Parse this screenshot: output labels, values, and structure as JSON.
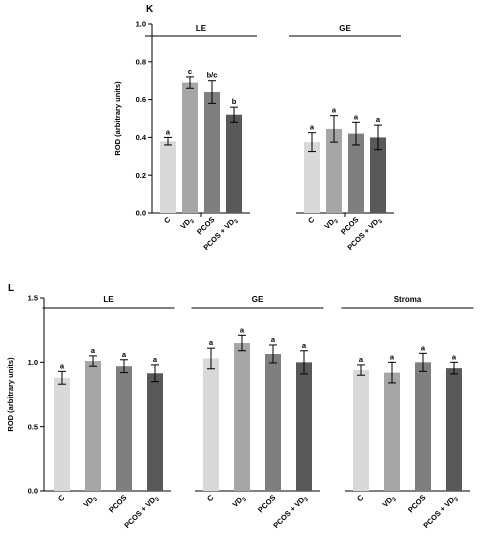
{
  "chart_data": [
    {
      "type": "bar",
      "panel": "K",
      "ylabel": "ROD (arbitrary units)",
      "ylim": [
        0,
        1.0
      ],
      "yticks": [
        "0.0",
        "0.2",
        "0.4",
        "0.6",
        "0.8",
        "1.0"
      ],
      "grid": false,
      "groups": [
        {
          "name": "LE",
          "bars": [
            {
              "category": "C",
              "sub": "",
              "value": 0.38,
              "error": 0.02,
              "letter": "a",
              "color": "#d9d9d9"
            },
            {
              "category": "VD",
              "sub": "3",
              "value": 0.69,
              "error": 0.03,
              "letter": "c",
              "color": "#a6a6a6"
            },
            {
              "category": "PCOS",
              "sub": "",
              "value": 0.64,
              "error": 0.06,
              "letter": "b/c",
              "color": "#7f7f7f"
            },
            {
              "category": "PCOS + VD",
              "sub": "3",
              "value": 0.52,
              "error": 0.04,
              "letter": "b",
              "color": "#595959"
            }
          ]
        },
        {
          "name": "GE",
          "bars": [
            {
              "category": "C",
              "sub": "",
              "value": 0.375,
              "error": 0.05,
              "letter": "a",
              "color": "#d9d9d9"
            },
            {
              "category": "VD",
              "sub": "3",
              "value": 0.445,
              "error": 0.07,
              "letter": "a",
              "color": "#a6a6a6"
            },
            {
              "category": "PCOS",
              "sub": "",
              "value": 0.42,
              "error": 0.06,
              "letter": "a",
              "color": "#7f7f7f"
            },
            {
              "category": "PCOS + VD",
              "sub": "3",
              "value": 0.4,
              "error": 0.065,
              "letter": "a",
              "color": "#595959"
            }
          ]
        }
      ]
    },
    {
      "type": "bar",
      "panel": "L",
      "ylabel": "ROD (arbitrary units)",
      "ylim": [
        0,
        1.5
      ],
      "yticks": [
        "0.0",
        "0.5",
        "1.0",
        "1.5"
      ],
      "grid": false,
      "groups": [
        {
          "name": "LE",
          "bars": [
            {
              "category": "C",
              "sub": "",
              "value": 0.88,
              "error": 0.05,
              "letter": "a",
              "color": "#d9d9d9"
            },
            {
              "category": "VD",
              "sub": "3",
              "value": 1.01,
              "error": 0.04,
              "letter": "a",
              "color": "#a6a6a6"
            },
            {
              "category": "PCOS",
              "sub": "",
              "value": 0.97,
              "error": 0.05,
              "letter": "a",
              "color": "#7f7f7f"
            },
            {
              "category": "PCOS + VD",
              "sub": "3",
              "value": 0.915,
              "error": 0.065,
              "letter": "a",
              "color": "#595959"
            }
          ]
        },
        {
          "name": "GE",
          "bars": [
            {
              "category": "C",
              "sub": "",
              "value": 1.03,
              "error": 0.08,
              "letter": "a",
              "color": "#d9d9d9"
            },
            {
              "category": "VD",
              "sub": "3",
              "value": 1.15,
              "error": 0.06,
              "letter": "a",
              "color": "#a6a6a6"
            },
            {
              "category": "PCOS",
              "sub": "",
              "value": 1.065,
              "error": 0.07,
              "letter": "a",
              "color": "#7f7f7f"
            },
            {
              "category": "PCOS + VD",
              "sub": "3",
              "value": 1.0,
              "error": 0.09,
              "letter": "a",
              "color": "#595959"
            }
          ]
        },
        {
          "name": "Stroma",
          "bars": [
            {
              "category": "C",
              "sub": "",
              "value": 0.94,
              "error": 0.04,
              "letter": "a",
              "color": "#d9d9d9"
            },
            {
              "category": "VD",
              "sub": "3",
              "value": 0.92,
              "error": 0.08,
              "letter": "a",
              "color": "#a6a6a6"
            },
            {
              "category": "PCOS",
              "sub": "",
              "value": 1.0,
              "error": 0.07,
              "letter": "a",
              "color": "#7f7f7f"
            },
            {
              "category": "PCOS + VD",
              "sub": "3",
              "value": 0.955,
              "error": 0.045,
              "letter": "a",
              "color": "#595959"
            }
          ]
        }
      ]
    }
  ]
}
